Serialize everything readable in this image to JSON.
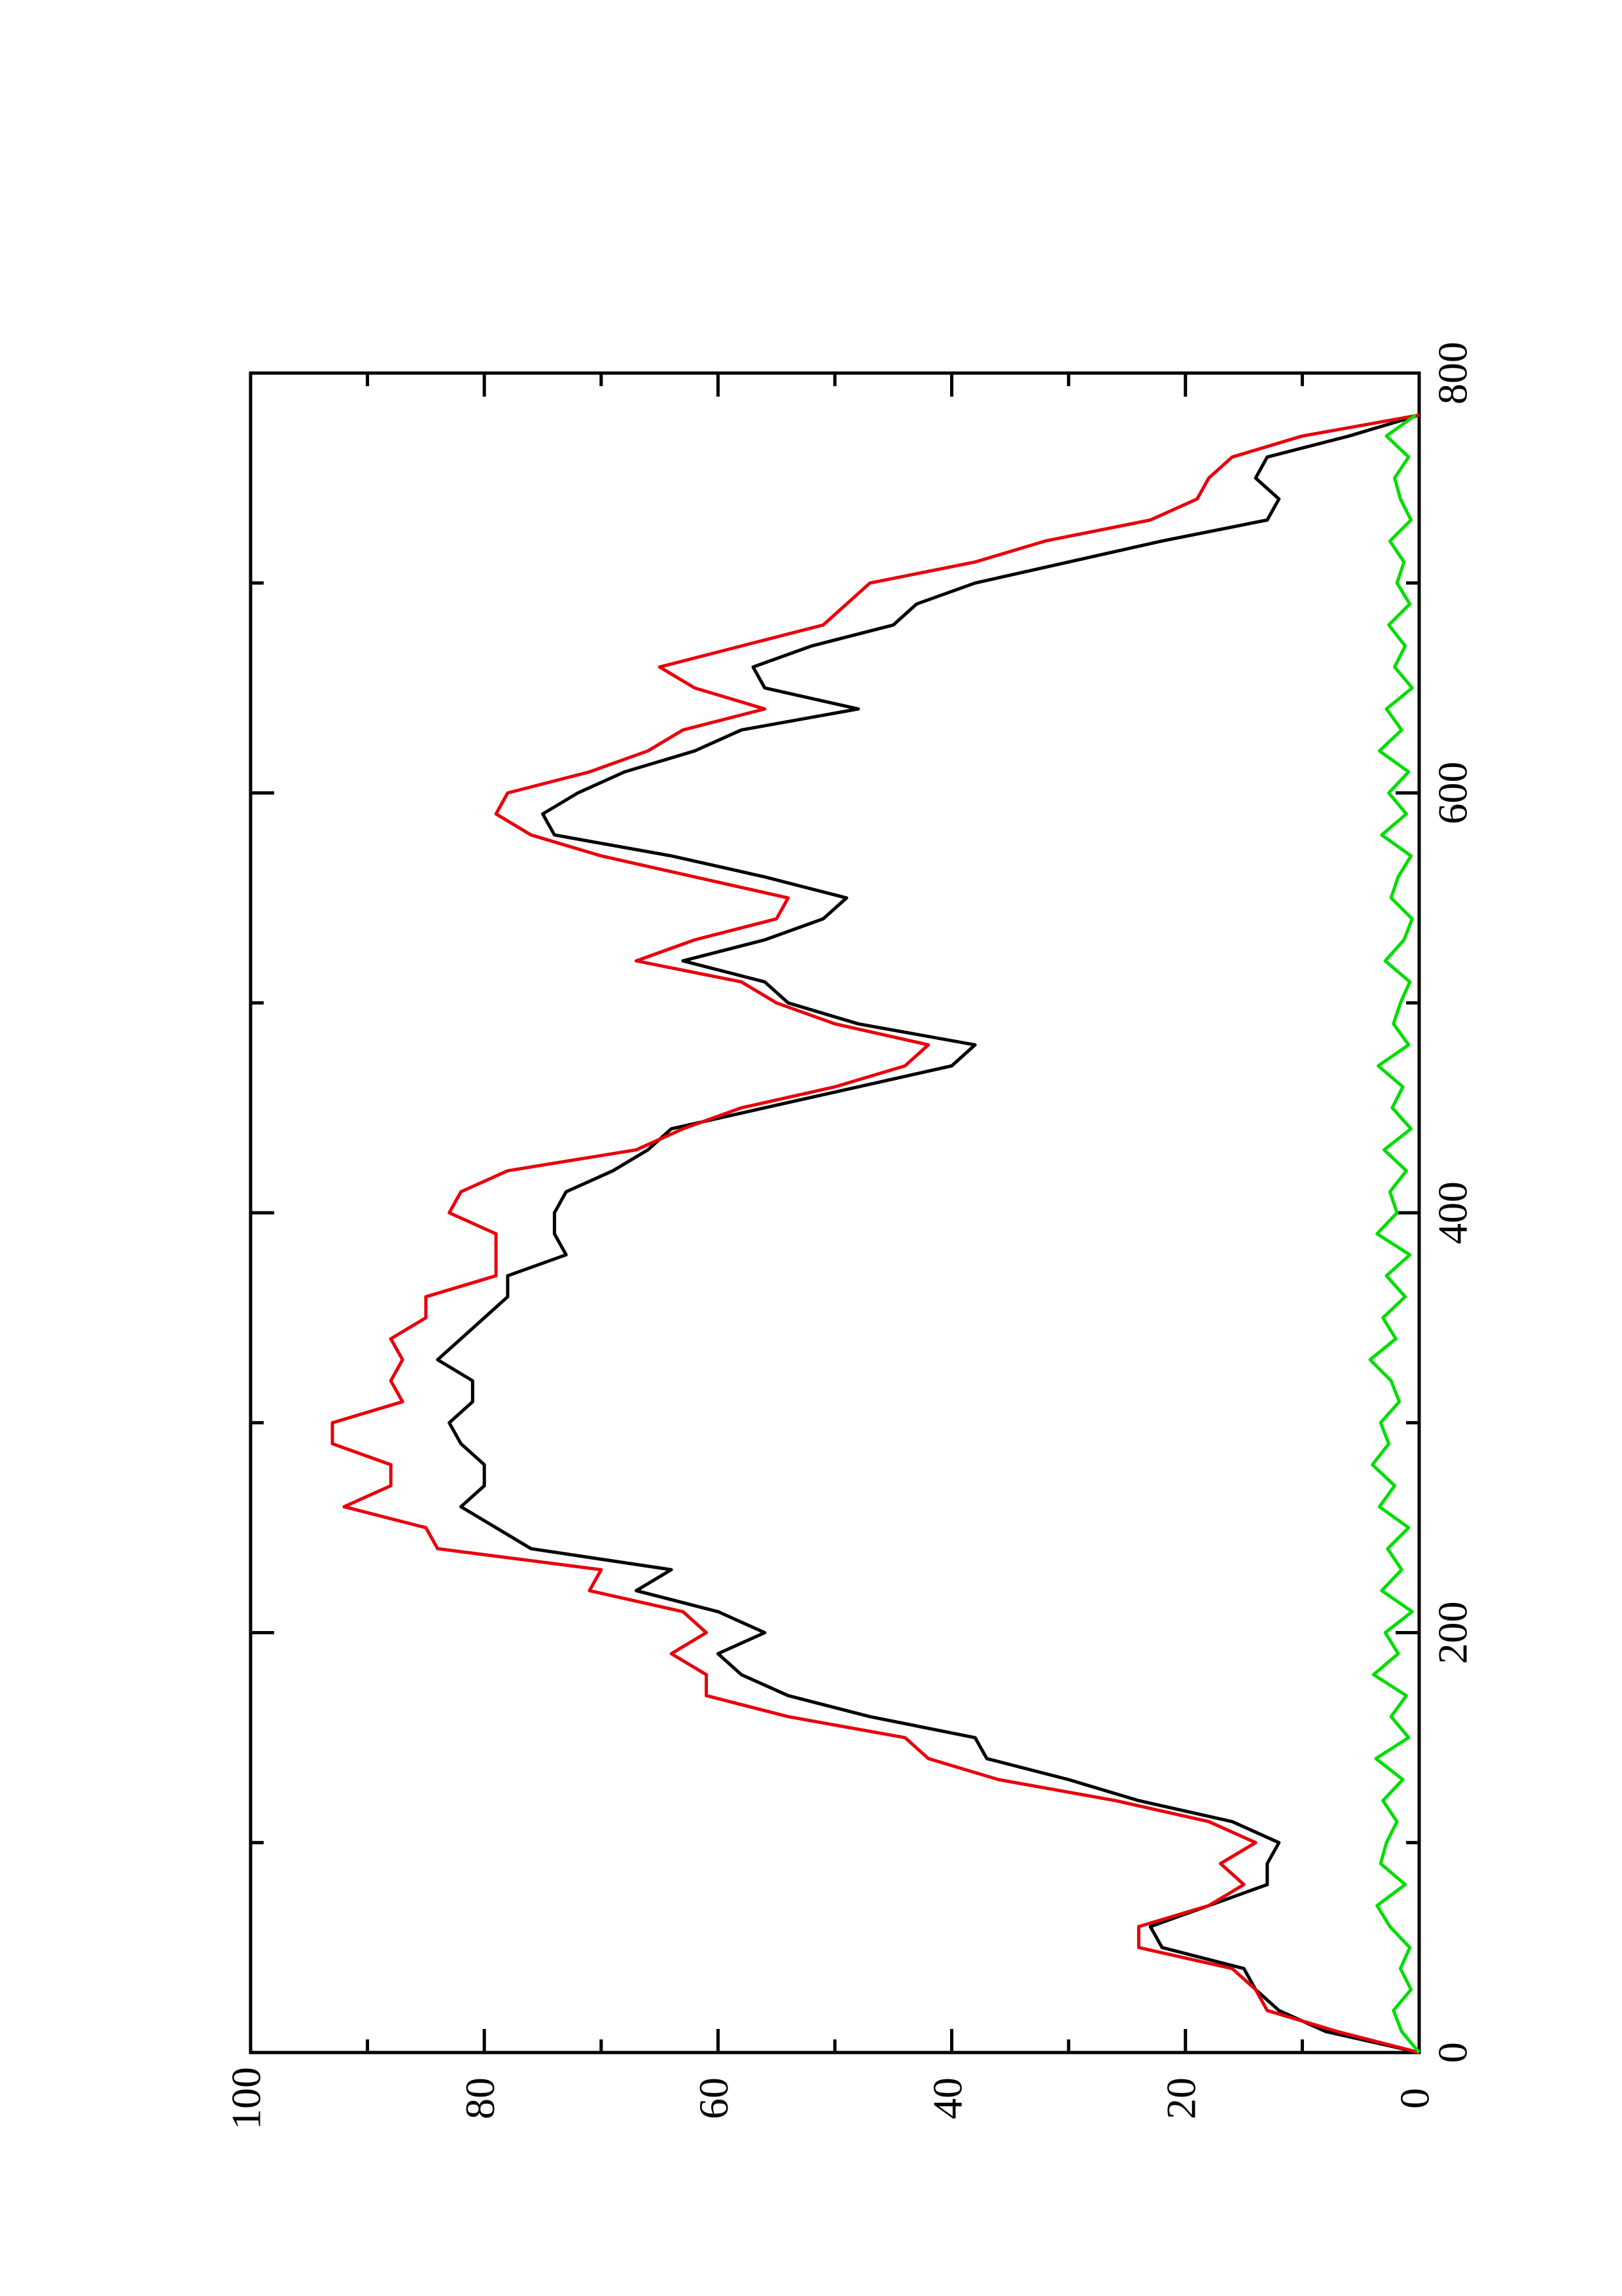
{
  "chart_data": {
    "type": "line",
    "title": "",
    "xlabel": "",
    "ylabel": "",
    "orientation": "rotated-90-counterclockwise",
    "xlim": [
      0,
      800
    ],
    "ylim": [
      0,
      100
    ],
    "x_ticks": [
      "0",
      "200",
      "400",
      "600",
      "800"
    ],
    "y_ticks": [
      "0",
      "20",
      "40",
      "60",
      "80",
      "100"
    ],
    "grid": false,
    "legend": "none",
    "series": [
      {
        "color": "#000000",
        "x": [
          0,
          10,
          20,
          30,
          40,
          50,
          60,
          70,
          80,
          90,
          100,
          110,
          120,
          130,
          140,
          150,
          160,
          170,
          180,
          190,
          200,
          210,
          220,
          230,
          240,
          250,
          260,
          270,
          280,
          290,
          300,
          310,
          320,
          330,
          340,
          350,
          360,
          370,
          380,
          390,
          400,
          410,
          420,
          430,
          440,
          450,
          460,
          470,
          480,
          490,
          500,
          510,
          520,
          530,
          540,
          550,
          560,
          570,
          580,
          590,
          600,
          610,
          620,
          630,
          640,
          650,
          660,
          670,
          680,
          690,
          700,
          710,
          720,
          730,
          740,
          750,
          760,
          770,
          780
        ],
        "y": [
          0,
          8,
          12,
          14,
          15,
          22,
          23,
          18,
          13,
          13,
          12,
          16,
          24,
          30,
          37,
          38,
          47,
          54,
          58,
          60,
          56,
          60,
          67,
          64,
          76,
          79,
          82,
          80,
          80,
          82,
          83,
          81,
          81,
          84,
          82,
          80,
          78,
          78,
          73,
          74,
          74,
          73,
          69,
          66,
          64,
          56,
          48,
          40,
          38,
          48,
          54,
          56,
          63,
          56,
          51,
          49,
          56,
          64,
          74,
          75,
          72,
          68,
          62,
          58,
          48,
          56,
          57,
          52,
          45,
          43,
          38,
          30,
          22,
          13,
          12,
          14,
          13,
          6,
          0
        ]
      },
      {
        "color": "#e8000b",
        "x": [
          0,
          10,
          20,
          30,
          40,
          50,
          60,
          70,
          80,
          90,
          100,
          110,
          120,
          130,
          140,
          150,
          160,
          170,
          180,
          190,
          200,
          210,
          220,
          230,
          240,
          250,
          260,
          270,
          280,
          290,
          300,
          310,
          320,
          330,
          340,
          350,
          360,
          370,
          380,
          390,
          400,
          410,
          420,
          430,
          440,
          450,
          460,
          470,
          480,
          490,
          500,
          510,
          520,
          530,
          540,
          550,
          560,
          570,
          580,
          590,
          600,
          610,
          620,
          630,
          640,
          650,
          660,
          670,
          680,
          690,
          700,
          710,
          720,
          730,
          740,
          750,
          760,
          770,
          780
        ],
        "y": [
          0,
          7,
          13,
          14,
          16,
          24,
          24,
          18,
          15,
          17,
          14,
          18,
          26,
          36,
          42,
          44,
          54,
          61,
          61,
          64,
          61,
          63,
          71,
          70,
          84,
          85,
          92,
          88,
          88,
          93,
          93,
          87,
          88,
          87,
          88,
          85,
          85,
          79,
          79,
          79,
          83,
          82,
          78,
          67,
          63,
          58,
          50,
          44,
          42,
          50,
          55,
          58,
          67,
          62,
          55,
          54,
          62,
          70,
          76,
          79,
          78,
          71,
          66,
          63,
          56,
          62,
          65,
          58,
          51,
          49,
          47,
          38,
          32,
          23,
          19,
          18,
          16,
          10,
          0
        ]
      },
      {
        "color": "#00dd00",
        "x": [
          0,
          10,
          20,
          30,
          40,
          50,
          60,
          70,
          80,
          90,
          100,
          110,
          120,
          130,
          140,
          150,
          160,
          170,
          180,
          190,
          200,
          210,
          220,
          230,
          240,
          250,
          260,
          270,
          280,
          290,
          300,
          310,
          320,
          330,
          340,
          350,
          360,
          370,
          380,
          390,
          400,
          410,
          420,
          430,
          440,
          450,
          460,
          470,
          480,
          490,
          500,
          510,
          520,
          530,
          540,
          550,
          560,
          570,
          580,
          590,
          600,
          610,
          620,
          630,
          640,
          650,
          660,
          670,
          680,
          690,
          700,
          710,
          720,
          730,
          740,
          750,
          760,
          770,
          780
        ],
        "y": [
          0,
          1.5,
          2.2,
          0.7,
          1.6,
          0.8,
          2.5,
          3.6,
          1.2,
          3.3,
          2.8,
          1.9,
          3.1,
          1.4,
          3.7,
          0.9,
          2.4,
          1.1,
          3.9,
          1.8,
          2.9,
          0.6,
          3.2,
          1.5,
          2.7,
          0.9,
          3.4,
          2.1,
          4.0,
          2.6,
          3.3,
          1.7,
          2.4,
          4.2,
          2.0,
          3.1,
          1.2,
          2.8,
          0.8,
          3.6,
          1.9,
          2.5,
          1.1,
          3.0,
          0.7,
          2.3,
          1.4,
          3.5,
          0.9,
          2.2,
          1.6,
          0.8,
          2.9,
          1.3,
          0.6,
          2.4,
          1.8,
          0.7,
          3.2,
          1.1,
          2.6,
          0.9,
          3.4,
          1.5,
          2.8,
          0.6,
          2.1,
          1.2,
          2.6,
          0.8,
          1.9,
          1.3,
          2.5,
          0.7,
          1.6,
          2.1,
          0.9,
          2.8,
          0.3
        ]
      }
    ]
  }
}
